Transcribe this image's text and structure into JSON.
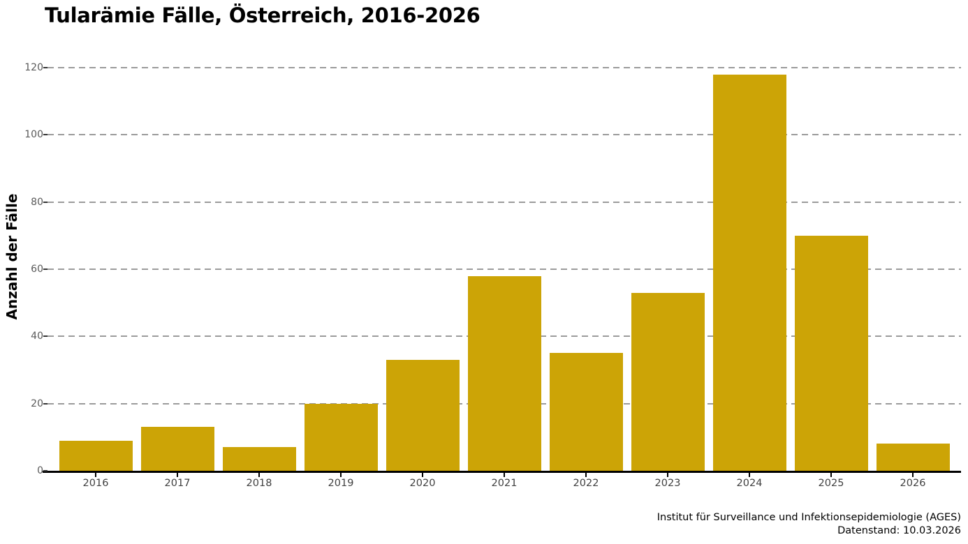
{
  "chart_data": {
    "type": "bar",
    "title": "Tularämie Fälle, Österreich, 2016-2026",
    "categories": [
      "2016",
      "2017",
      "2018",
      "2019",
      "2020",
      "2021",
      "2022",
      "2023",
      "2024",
      "2025",
      "2026"
    ],
    "values": [
      9,
      13,
      7,
      20,
      33,
      58,
      35,
      53,
      118,
      70,
      8
    ],
    "xlabel": "",
    "ylabel": "Anzahl der Fälle",
    "ylim": [
      0,
      120
    ],
    "yticks": [
      0,
      20,
      40,
      60,
      80,
      100,
      120
    ],
    "grid": "horizontal-dashed",
    "legend": "none",
    "bar_color": "#CCA406"
  },
  "colors": {
    "bar": "#CCA406",
    "gridline": "#9b9b9b",
    "axis": "#000000",
    "y_tick_label": "#595959",
    "x_tick_label": "#404040",
    "background": "#ffffff"
  },
  "footer": {
    "source": "Institut für Surveillance und Infektionsepidemiologie (AGES)",
    "data_status": "Datenstand: 10.03.2026"
  }
}
